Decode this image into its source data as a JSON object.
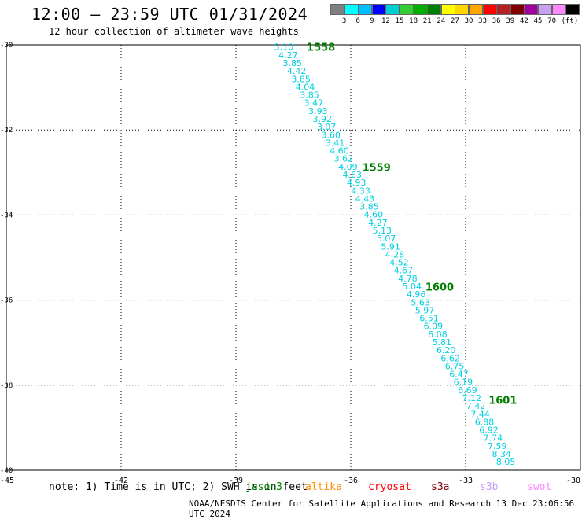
{
  "header": {
    "title": "12:00 — 23:59 UTC 01/31/2024",
    "subtitle": "12 hour collection of altimeter wave heights"
  },
  "legend": {
    "unit": "(ft)",
    "colors": [
      "#808080",
      "#00ffff",
      "#00bfff",
      "#0000ff",
      "#00ced1",
      "#32cd32",
      "#00b000",
      "#008000",
      "#ffff00",
      "#ffd700",
      "#ffa500",
      "#ff0000",
      "#b22222",
      "#800000",
      "#a000a0",
      "#c8a0f0",
      "#ff88ff",
      "#000000"
    ],
    "labels": [
      "3",
      "6",
      "9",
      "12",
      "15",
      "18",
      "21",
      "24",
      "27",
      "30",
      "33",
      "36",
      "39",
      "42",
      "45",
      "70"
    ]
  },
  "chart_data": {
    "type": "scatter",
    "xlim": [
      -45,
      -30
    ],
    "ylim": [
      -40,
      -30
    ],
    "x_ticks": [
      "-45",
      "-42",
      "-39",
      "-36",
      "-33",
      "-30"
    ],
    "y_ticks": [
      "-30",
      "-32",
      "-34",
      "-36",
      "-38",
      "-40"
    ],
    "grid": true,
    "track": {
      "start": [
        -38.0,
        -30.05
      ],
      "end": [
        -32.2,
        -39.8
      ],
      "values": [
        "5.10",
        "4.27",
        "3.85",
        "4.42",
        "3.85",
        "4.04",
        "3.85",
        "3.47",
        "3.93",
        "3.92",
        "3.07",
        "3.60",
        "3.41",
        "4.60",
        "3.62",
        "4.09",
        "4.63",
        "4.93",
        "4.33",
        "4.43",
        "3.85",
        "4.60",
        "4.27",
        "5.13",
        "5.07",
        "5.91",
        "4.28",
        "4.52",
        "4.67",
        "4.78",
        "5.04",
        "4.96",
        "5.63",
        "5.97",
        "6.51",
        "6.09",
        "6.08",
        "5.81",
        "6.20",
        "6.62",
        "6.75",
        "6.47",
        "6.19",
        "6.69",
        "7.12",
        "7.42",
        "7.44",
        "6.88",
        "6.92",
        "7.74",
        "7.59",
        "8.34",
        "8.05"
      ]
    },
    "times": [
      {
        "label": "1558",
        "lon": -37.15,
        "lat": -30.05
      },
      {
        "label": "1559",
        "lon": -35.7,
        "lat": -32.87
      },
      {
        "label": "1600",
        "lon": -34.05,
        "lat": -35.68
      },
      {
        "label": "1601",
        "lon": -32.4,
        "lat": -38.35
      }
    ]
  },
  "footer": {
    "note": "note: 1) Time is in UTC; 2) SWH is in feet",
    "satellites": [
      {
        "name": "jason3",
        "color": "#008000"
      },
      {
        "name": "altika",
        "color": "#ff8c00"
      },
      {
        "name": "cryosat",
        "color": "#ff0000"
      },
      {
        "name": "s3a",
        "color": "#8b0000"
      },
      {
        "name": "s3b",
        "color": "#c8a0f0"
      },
      {
        "name": "swot",
        "color": "#ff88ff"
      }
    ],
    "credit": "NOAA/NESDIS Center for Satellite Applications and Research   13 Dec 23:06:56 UTC 2024"
  }
}
